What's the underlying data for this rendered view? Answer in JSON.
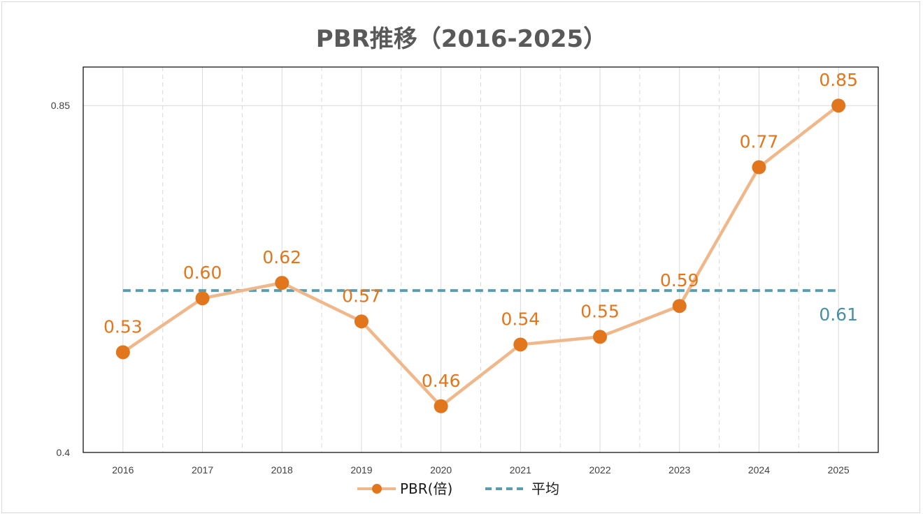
{
  "chart_data": {
    "type": "line",
    "title": "PBR推移（2016-2025）",
    "categories": [
      "2016",
      "2017",
      "2018",
      "2019",
      "2020",
      "2021",
      "2022",
      "2023",
      "2024",
      "2025"
    ],
    "series": [
      {
        "name": "PBR(倍)",
        "values": [
          0.53,
          0.6,
          0.62,
          0.57,
          0.46,
          0.54,
          0.55,
          0.59,
          0.77,
          0.85
        ],
        "labels": [
          "0.53",
          "0.60",
          "0.62",
          "0.57",
          "0.46",
          "0.54",
          "0.55",
          "0.59",
          "0.77",
          "0.85"
        ],
        "color": "#E1761D",
        "line_color": "#F0B88A"
      },
      {
        "name": "平均",
        "values": [
          0.61,
          0.61,
          0.61,
          0.61,
          0.61,
          0.61,
          0.61,
          0.61,
          0.61,
          0.61
        ],
        "end_label": "0.61",
        "color": "#5B9DB0",
        "style": "dashed"
      }
    ],
    "yticks": [
      "0.85",
      "0.4"
    ],
    "ytick_values": [
      0.85,
      0.4
    ],
    "ylim": [
      0.4,
      0.9
    ],
    "xlabel": "",
    "ylabel": "",
    "grid": true,
    "legend_position": "bottom"
  }
}
